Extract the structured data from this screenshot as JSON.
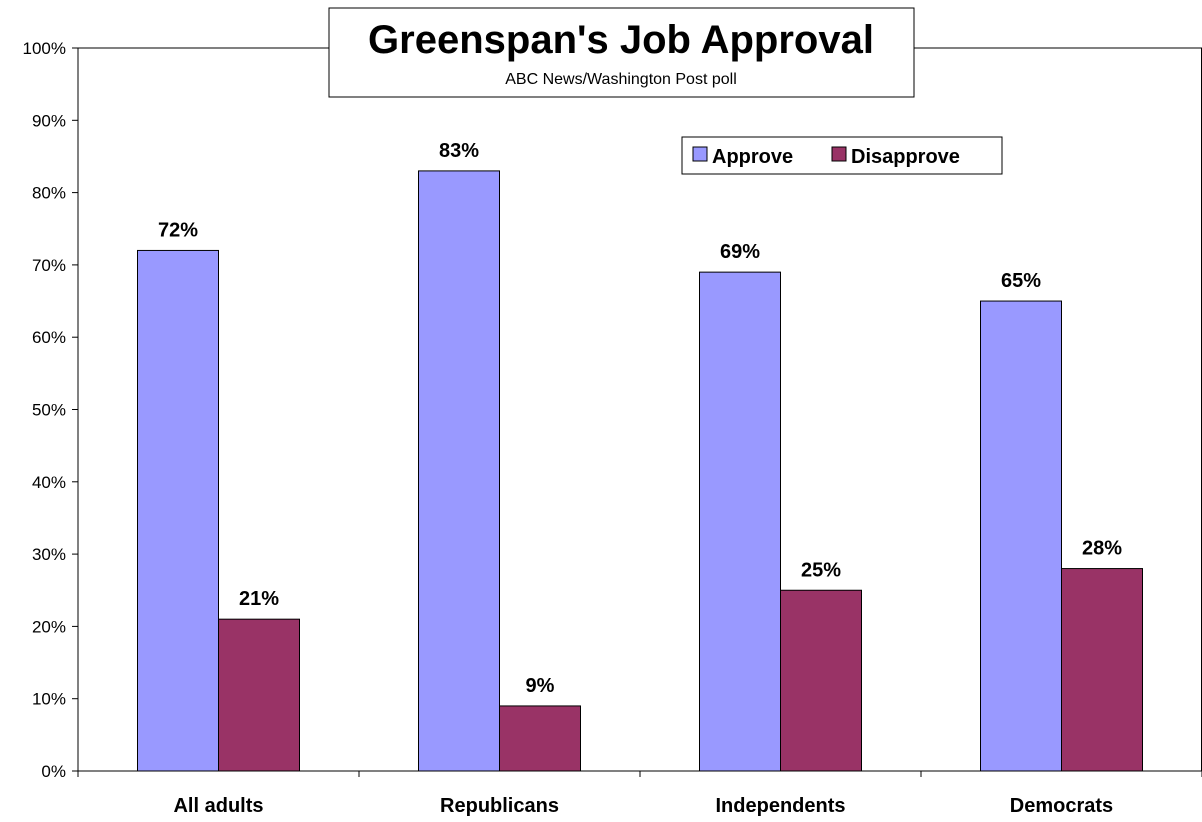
{
  "chart_data": {
    "type": "bar",
    "title": "Greenspan's Job Approval",
    "subtitle": "ABC News/Washington Post poll",
    "categories": [
      "All adults",
      "Republicans",
      "Independents",
      "Democrats"
    ],
    "series": [
      {
        "name": "Approve",
        "values": [
          72,
          83,
          69,
          65
        ],
        "labels": [
          "72%",
          "83%",
          "69%",
          "65%"
        ],
        "color": "#9999ff"
      },
      {
        "name": "Disapprove",
        "values": [
          21,
          9,
          25,
          28
        ],
        "labels": [
          "21%",
          "9%",
          "25%",
          "28%"
        ],
        "color": "#993366"
      }
    ],
    "ylim": [
      0,
      100
    ],
    "yticks": [
      0,
      10,
      20,
      30,
      40,
      50,
      60,
      70,
      80,
      90,
      100
    ],
    "ytick_labels": [
      "0%",
      "10%",
      "20%",
      "30%",
      "40%",
      "50%",
      "60%",
      "70%",
      "80%",
      "90%",
      "100%"
    ],
    "xlabel": "",
    "ylabel": "",
    "grid": false,
    "legend_position": "top-right"
  }
}
